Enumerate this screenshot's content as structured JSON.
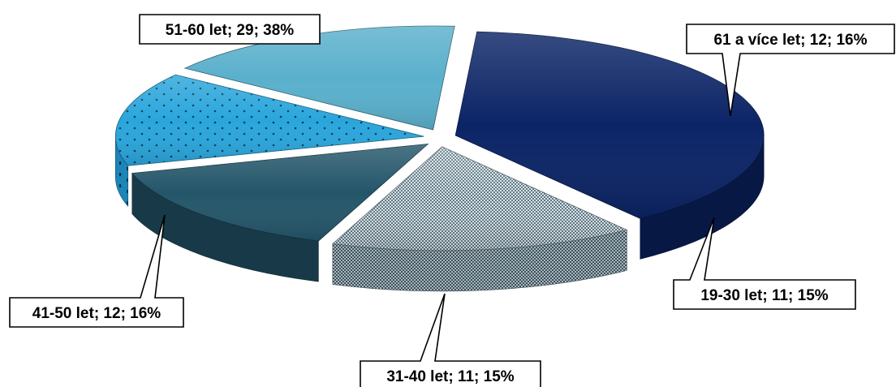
{
  "chart_data": {
    "type": "pie",
    "style": "3d-exploded",
    "title": "",
    "slices": [
      {
        "category": "51-60 let",
        "value": 29,
        "percent": 38,
        "label": "51-60 let; 29; 38%",
        "color": "#0b2466",
        "pattern": "solid"
      },
      {
        "category": "61 a více let",
        "value": 12,
        "percent": 16,
        "label": "61 a více let; 12; 16%",
        "color": "#9fb3bc",
        "pattern": "checker"
      },
      {
        "category": "19-30 let",
        "value": 11,
        "percent": 15,
        "label": "19-30 let; 11; 15%",
        "color": "#24566a",
        "pattern": "solid"
      },
      {
        "category": "31-40 let",
        "value": 11,
        "percent": 15,
        "label": "31-40 let; 11; 15%",
        "color": "#2aa6dc",
        "pattern": "dots"
      },
      {
        "category": "41-50 let",
        "value": 12,
        "percent": 16,
        "label": "41-50 let; 12; 16%",
        "color": "#5ab0cc",
        "pattern": "solid"
      }
    ],
    "legend": "none",
    "data_labels": "callouts"
  }
}
